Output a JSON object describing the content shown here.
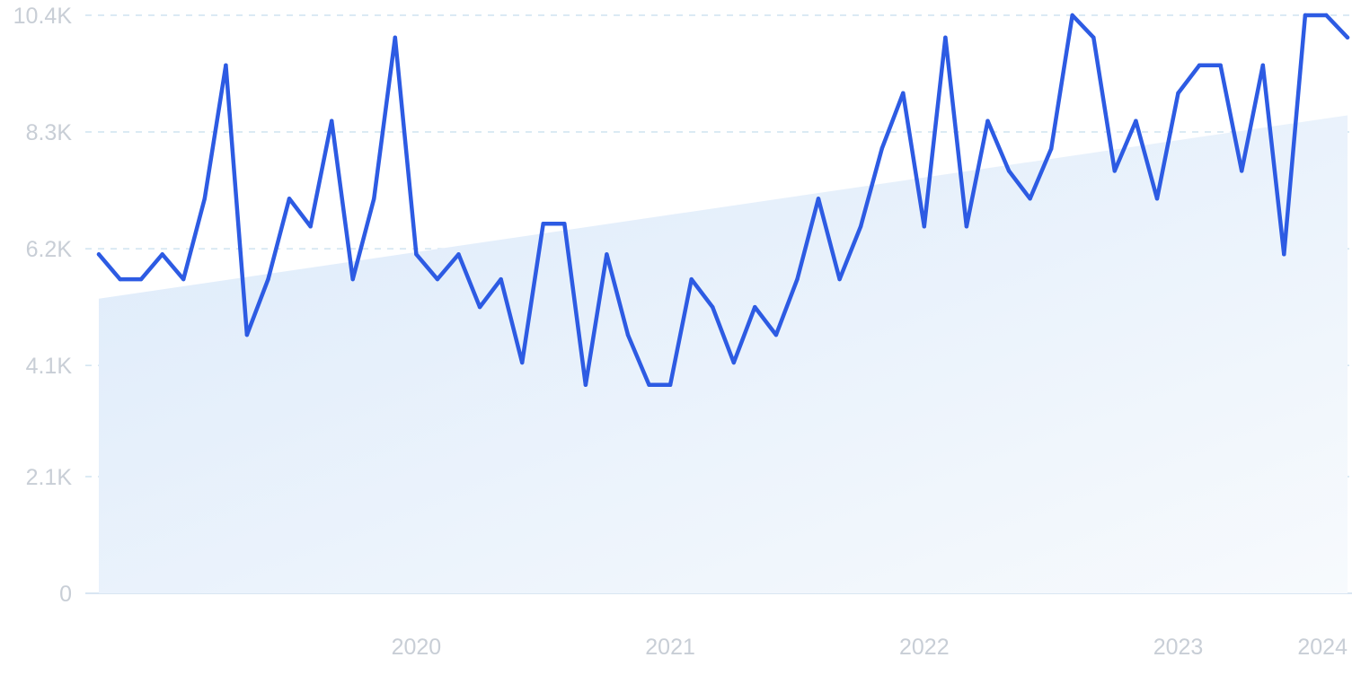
{
  "chart_data": {
    "type": "line",
    "title": "",
    "xlabel": "",
    "ylabel": "",
    "ylim": [
      0,
      10400
    ],
    "y_ticks": [
      {
        "value": 0,
        "label": "0"
      },
      {
        "value": 2100,
        "label": "2.1K"
      },
      {
        "value": 4100,
        "label": "4.1K"
      },
      {
        "value": 6200,
        "label": "6.2K"
      },
      {
        "value": 8300,
        "label": "8.3K"
      },
      {
        "value": 10400,
        "label": "10.4K"
      }
    ],
    "x_ticks": [
      "2020",
      "2021",
      "2022",
      "2023",
      "2024"
    ],
    "x_range": [
      "2019-04",
      "2024-03"
    ],
    "grid": true,
    "legend": "none",
    "colors": {
      "line": "#2d5be3",
      "trend_fill": "#dceafa",
      "grid": "#cfe3f1",
      "tick_text": "#c8ced6"
    },
    "trend": {
      "start": 5300,
      "end": 8600
    },
    "series": [
      {
        "x": [
          "2019-04",
          "2019-05",
          "2019-06",
          "2019-07",
          "2019-08",
          "2019-09",
          "2019-10",
          "2019-11",
          "2019-12",
          "2020-01",
          "2020-02",
          "2020-03",
          "2020-04",
          "2020-05",
          "2020-06",
          "2020-07",
          "2020-08",
          "2020-09",
          "2020-10",
          "2020-11",
          "2020-12",
          "2021-01",
          "2021-02",
          "2021-03",
          "2021-04",
          "2021-05",
          "2021-06",
          "2021-07",
          "2021-08",
          "2021-09",
          "2021-10",
          "2021-11",
          "2021-12",
          "2022-01",
          "2022-02",
          "2022-03",
          "2022-04",
          "2022-05",
          "2022-06",
          "2022-07",
          "2022-08",
          "2022-09",
          "2022-10",
          "2022-11",
          "2022-12",
          "2023-01",
          "2023-02",
          "2023-03",
          "2023-04",
          "2023-05",
          "2023-06",
          "2023-07",
          "2023-08",
          "2023-09",
          "2023-10",
          "2023-11",
          "2023-12",
          "2024-01",
          "2024-02",
          "2024-03"
        ],
        "values": [
          6100,
          5650,
          5650,
          6100,
          5650,
          7100,
          9500,
          4650,
          5650,
          7100,
          6600,
          8500,
          5650,
          7100,
          10000,
          6100,
          5650,
          6100,
          5150,
          5650,
          4150,
          6650,
          6650,
          3750,
          6100,
          4650,
          3750,
          3750,
          5650,
          5150,
          4150,
          5150,
          4650,
          5650,
          7100,
          5650,
          6600,
          8000,
          9000,
          6600,
          10000,
          6600,
          8500,
          7600,
          7100,
          8000,
          10400,
          10000,
          7600,
          8500,
          7100,
          9000,
          9500,
          9500,
          7600,
          9500,
          6100,
          10400,
          10400,
          10000
        ]
      }
    ]
  }
}
